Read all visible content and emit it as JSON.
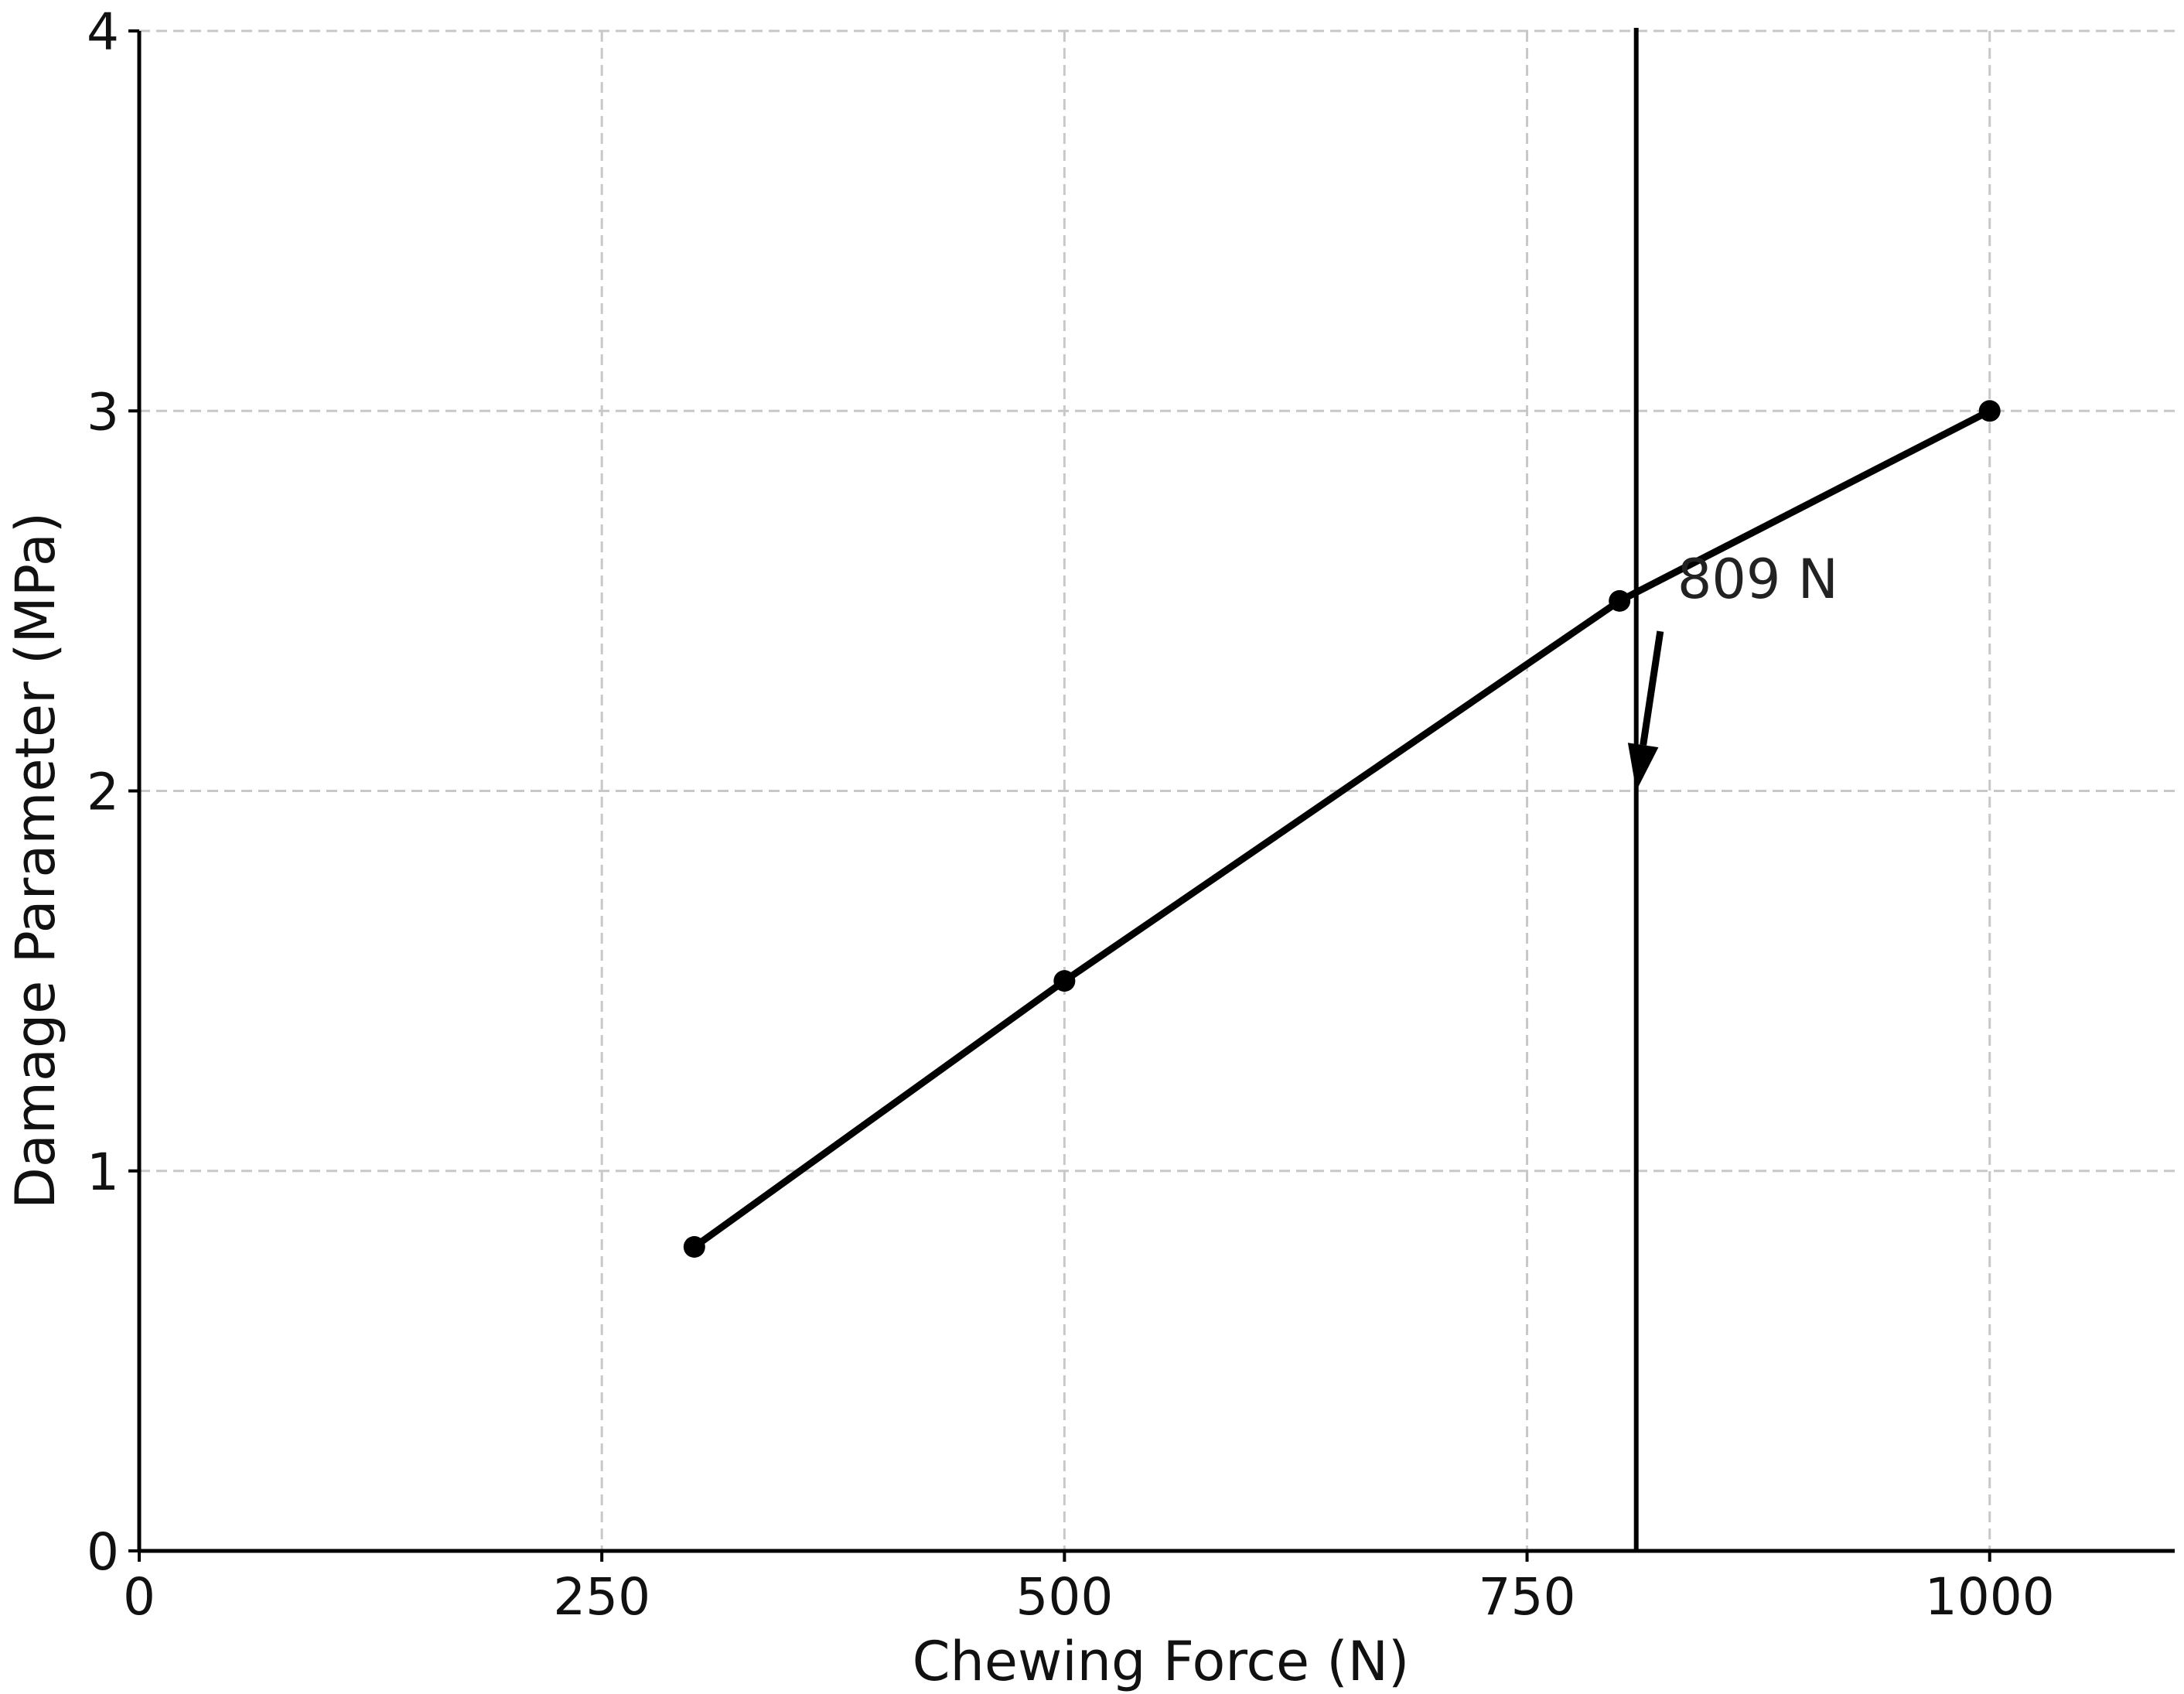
{
  "chart_data": {
    "type": "line",
    "title": "",
    "xlabel": "Chewing Force (N)",
    "ylabel": "Damage Parameter (MPa)",
    "xlim": [
      0,
      1100
    ],
    "ylim": [
      0,
      4
    ],
    "x_ticks": [
      0,
      250,
      500,
      750,
      1000
    ],
    "x_tick_labels": [
      "0",
      "250",
      "500",
      "750",
      "1000"
    ],
    "y_ticks": [
      0,
      1,
      2,
      3,
      4
    ],
    "y_tick_labels": [
      "0",
      "1",
      "2",
      "3",
      "4"
    ],
    "grid": true,
    "series": [
      {
        "x": [
          300,
          500,
          800,
          1000
        ],
        "y": [
          0.8,
          1.5,
          2.5,
          3.0
        ],
        "color": "#000000",
        "marker": "circle"
      }
    ],
    "vertical_line": {
      "x": 809,
      "color": "#000000"
    },
    "annotation": {
      "text": "809 N",
      "text_x": 822,
      "text_y": 2.5,
      "arrow_from": [
        822,
        2.42
      ],
      "arrow_to": [
        809,
        2.0
      ]
    }
  }
}
